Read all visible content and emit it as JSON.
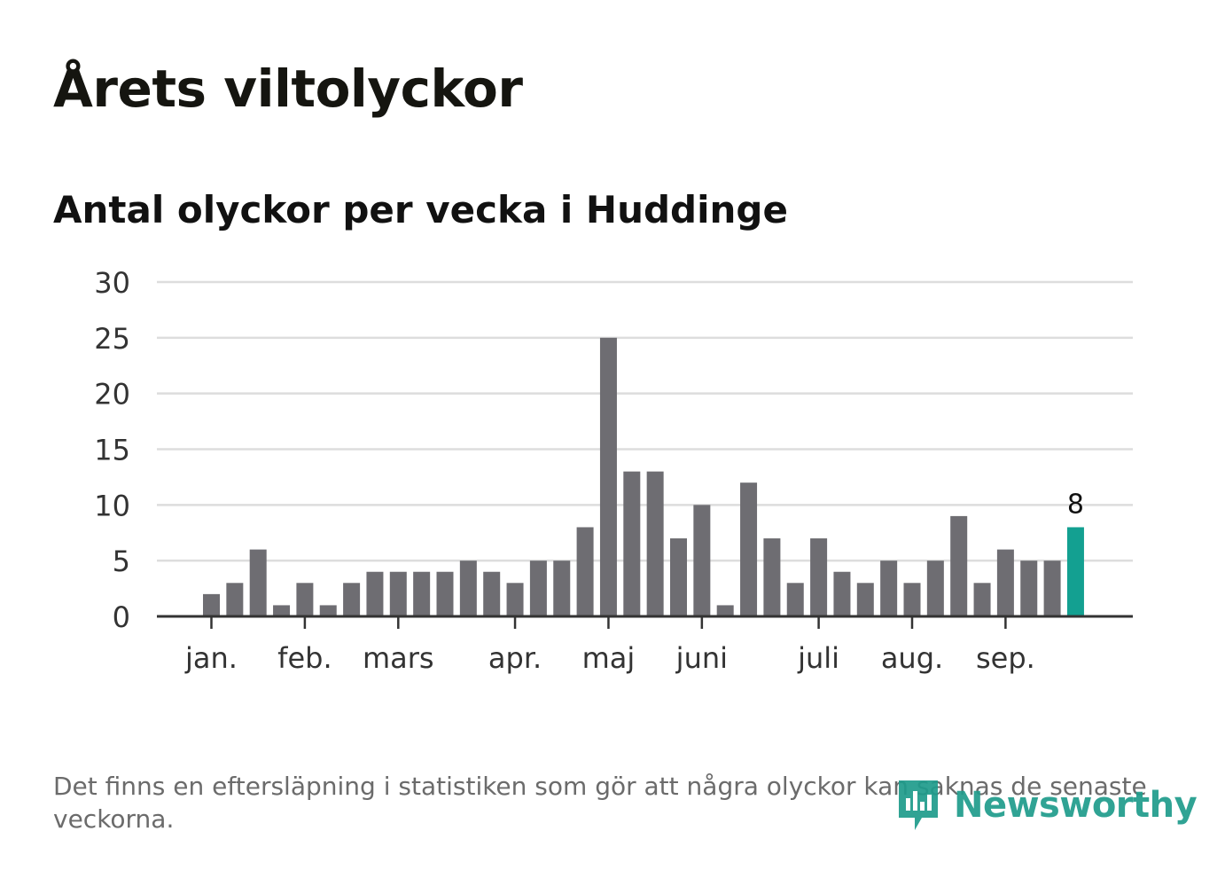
{
  "header": {
    "title": "Årets viltolyckor",
    "subtitle": "Antal olyckor per vecka i Huddinge"
  },
  "footnote": "Det finns en eftersläpning i statistiken som gör att några olyckor kan saknas de senaste veckorna.",
  "brand": {
    "name": "Newsworthy",
    "icon": "newsworthy-logo-icon",
    "color": "#1f9c8c"
  },
  "colors": {
    "bar": "#6e6d72",
    "highlight": "#13a091",
    "grid": "#dddddd",
    "axis": "#333333"
  },
  "chart_data": {
    "type": "bar",
    "title": "Antal olyckor per vecka i Huddinge",
    "xlabel": "",
    "ylabel": "",
    "ylim": [
      0,
      30
    ],
    "yticks": [
      0,
      5,
      10,
      15,
      20,
      25,
      30
    ],
    "grid": true,
    "values": [
      2,
      3,
      6,
      1,
      3,
      1,
      3,
      4,
      4,
      4,
      4,
      5,
      4,
      3,
      5,
      5,
      8,
      25,
      13,
      13,
      7,
      10,
      1,
      12,
      7,
      3,
      7,
      4,
      3,
      5,
      3,
      5,
      9,
      3,
      6,
      5,
      5,
      8
    ],
    "highlight_index": 37,
    "data_labels": [
      {
        "index": 37,
        "text": "8"
      }
    ],
    "month_labels": [
      {
        "label": "jan.",
        "week": 0
      },
      {
        "label": "feb.",
        "week": 4
      },
      {
        "label": "mars",
        "week": 8
      },
      {
        "label": "apr.",
        "week": 13
      },
      {
        "label": "maj",
        "week": 17
      },
      {
        "label": "juni",
        "week": 21
      },
      {
        "label": "juli",
        "week": 26
      },
      {
        "label": "aug.",
        "week": 30
      },
      {
        "label": "sep.",
        "week": 34
      }
    ]
  }
}
